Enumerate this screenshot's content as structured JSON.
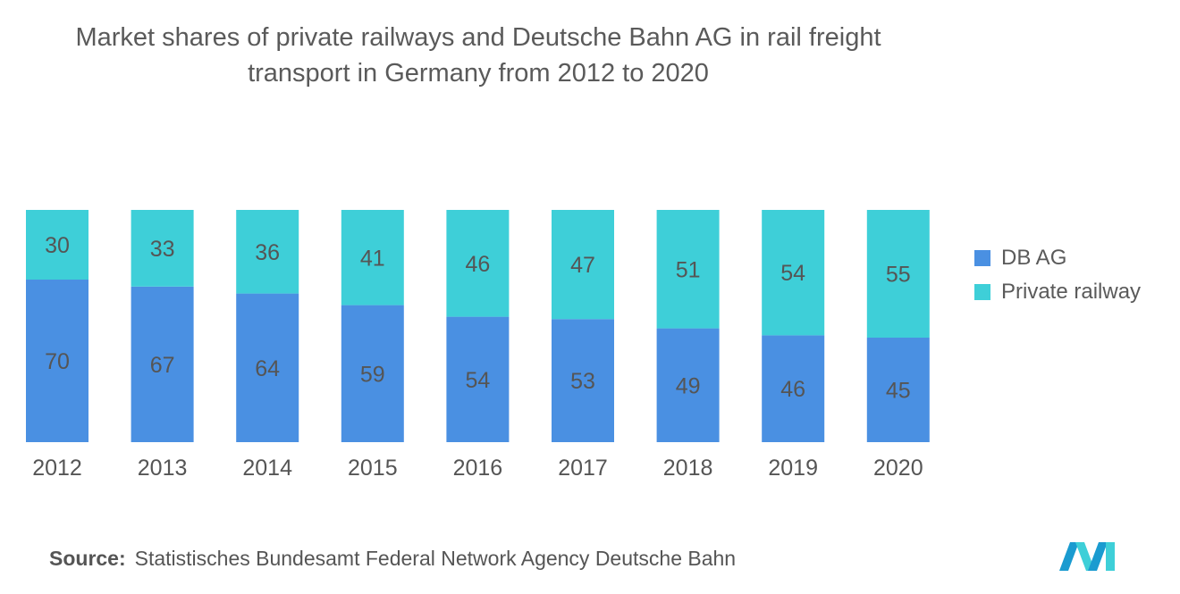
{
  "title": {
    "line1": "Market shares of private railways and Deutsche Bahn AG in rail freight",
    "line2": "transport in Germany from 2012 to 2020"
  },
  "source": {
    "label": "Source:",
    "text": "Statistisches Bundesamt Federal Network Agency Deutsche Bahn"
  },
  "colors": {
    "db_ag": "#4a90e2",
    "private_railway": "#3ecfd8",
    "label_text": "#555555",
    "logo": "#1a9bd0"
  },
  "chart_data": {
    "type": "bar",
    "stacked": true,
    "categories": [
      "2012",
      "2013",
      "2014",
      "2015",
      "2016",
      "2017",
      "2018",
      "2019",
      "2020"
    ],
    "series": [
      {
        "name": "DB AG",
        "values": [
          70,
          67,
          64,
          59,
          54,
          53,
          49,
          46,
          45
        ]
      },
      {
        "name": "Private railway",
        "values": [
          30,
          33,
          36,
          41,
          46,
          47,
          51,
          54,
          55
        ]
      }
    ],
    "ylim": [
      0,
      100
    ],
    "grid": false,
    "legend": "right",
    "data_labels": true
  }
}
